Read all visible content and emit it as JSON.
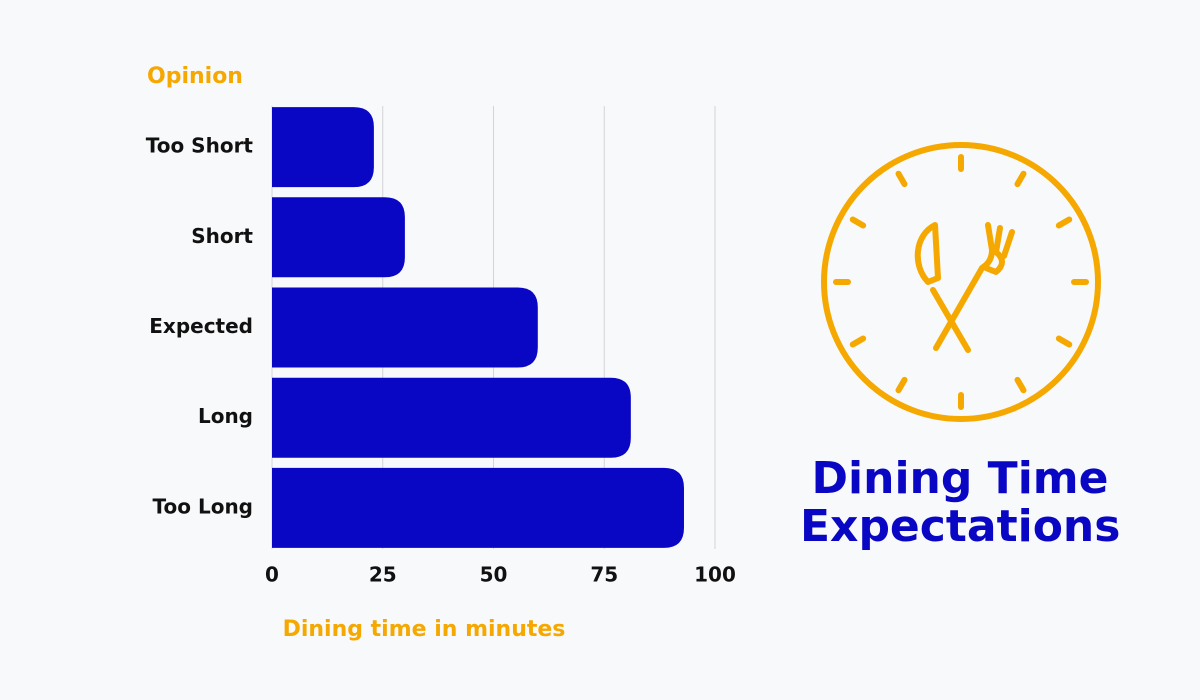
{
  "chart_data": {
    "type": "bar",
    "orientation": "horizontal",
    "title": "Dining Time Expectations",
    "y_label": "Opinion",
    "x_label": "Dining time in minutes",
    "categories": [
      "Too Short",
      "Short",
      "Expected",
      "Long",
      "Too Long"
    ],
    "values": [
      23,
      30,
      60,
      81,
      93
    ],
    "color": "#0a07c4",
    "xlim": [
      0,
      100
    ],
    "xticks": [
      0,
      25,
      50,
      75,
      100
    ],
    "grid": true
  }
}
